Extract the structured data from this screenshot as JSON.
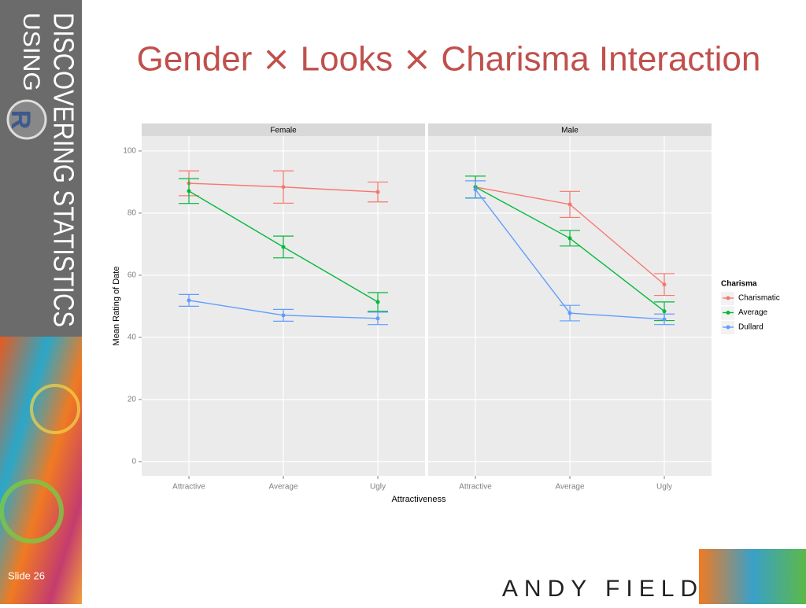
{
  "slide": {
    "title": "Gender ⨯ Looks ⨯ Charisma Interaction",
    "side_title": "DISCOVERING STATISTICS",
    "side_using": "USING",
    "logo": "R",
    "slide_number": "Slide 26",
    "author": "ANDY FIELD"
  },
  "figure": {
    "xlabel": "Attractiveness",
    "ylabel": "Mean Rating of Date",
    "legend_title": "Charisma"
  },
  "chart_data": [
    {
      "type": "line",
      "title": "Female",
      "categories": [
        "Attractive",
        "Average",
        "Ugly"
      ],
      "ylim": [
        -4.6,
        104.8
      ],
      "yticks": [
        0,
        20,
        40,
        60,
        80,
        100
      ],
      "grid": true,
      "series": [
        {
          "name": "Charismatic",
          "color": "#F8766D",
          "values": [
            89.6,
            88.4,
            86.8
          ],
          "errors": [
            4.0,
            5.2,
            3.2
          ]
        },
        {
          "name": "Average",
          "color": "#00BA38",
          "values": [
            87.1,
            69.1,
            51.4
          ],
          "errors": [
            4.0,
            3.5,
            3.0
          ]
        },
        {
          "name": "Dullard",
          "color": "#619CFF",
          "values": [
            51.9,
            47.1,
            46.1
          ],
          "errors": [
            1.9,
            1.9,
            2.0
          ]
        }
      ]
    },
    {
      "type": "line",
      "title": "Male",
      "categories": [
        "Attractive",
        "Average",
        "Ugly"
      ],
      "ylim": [
        -4.6,
        104.8
      ],
      "yticks": [
        0,
        20,
        40,
        60,
        80,
        100
      ],
      "grid": true,
      "series": [
        {
          "name": "Charismatic",
          "color": "#F8766D",
          "values": [
            88.4,
            82.8,
            57.0
          ],
          "errors": [
            3.5,
            4.2,
            3.5
          ]
        },
        {
          "name": "Average",
          "color": "#00BA38",
          "values": [
            88.4,
            71.9,
            48.4
          ],
          "errors": [
            3.5,
            2.5,
            3.0
          ]
        },
        {
          "name": "Dullard",
          "color": "#619CFF",
          "values": [
            87.6,
            47.8,
            45.8
          ],
          "errors": [
            2.8,
            2.5,
            1.7
          ]
        }
      ]
    }
  ]
}
